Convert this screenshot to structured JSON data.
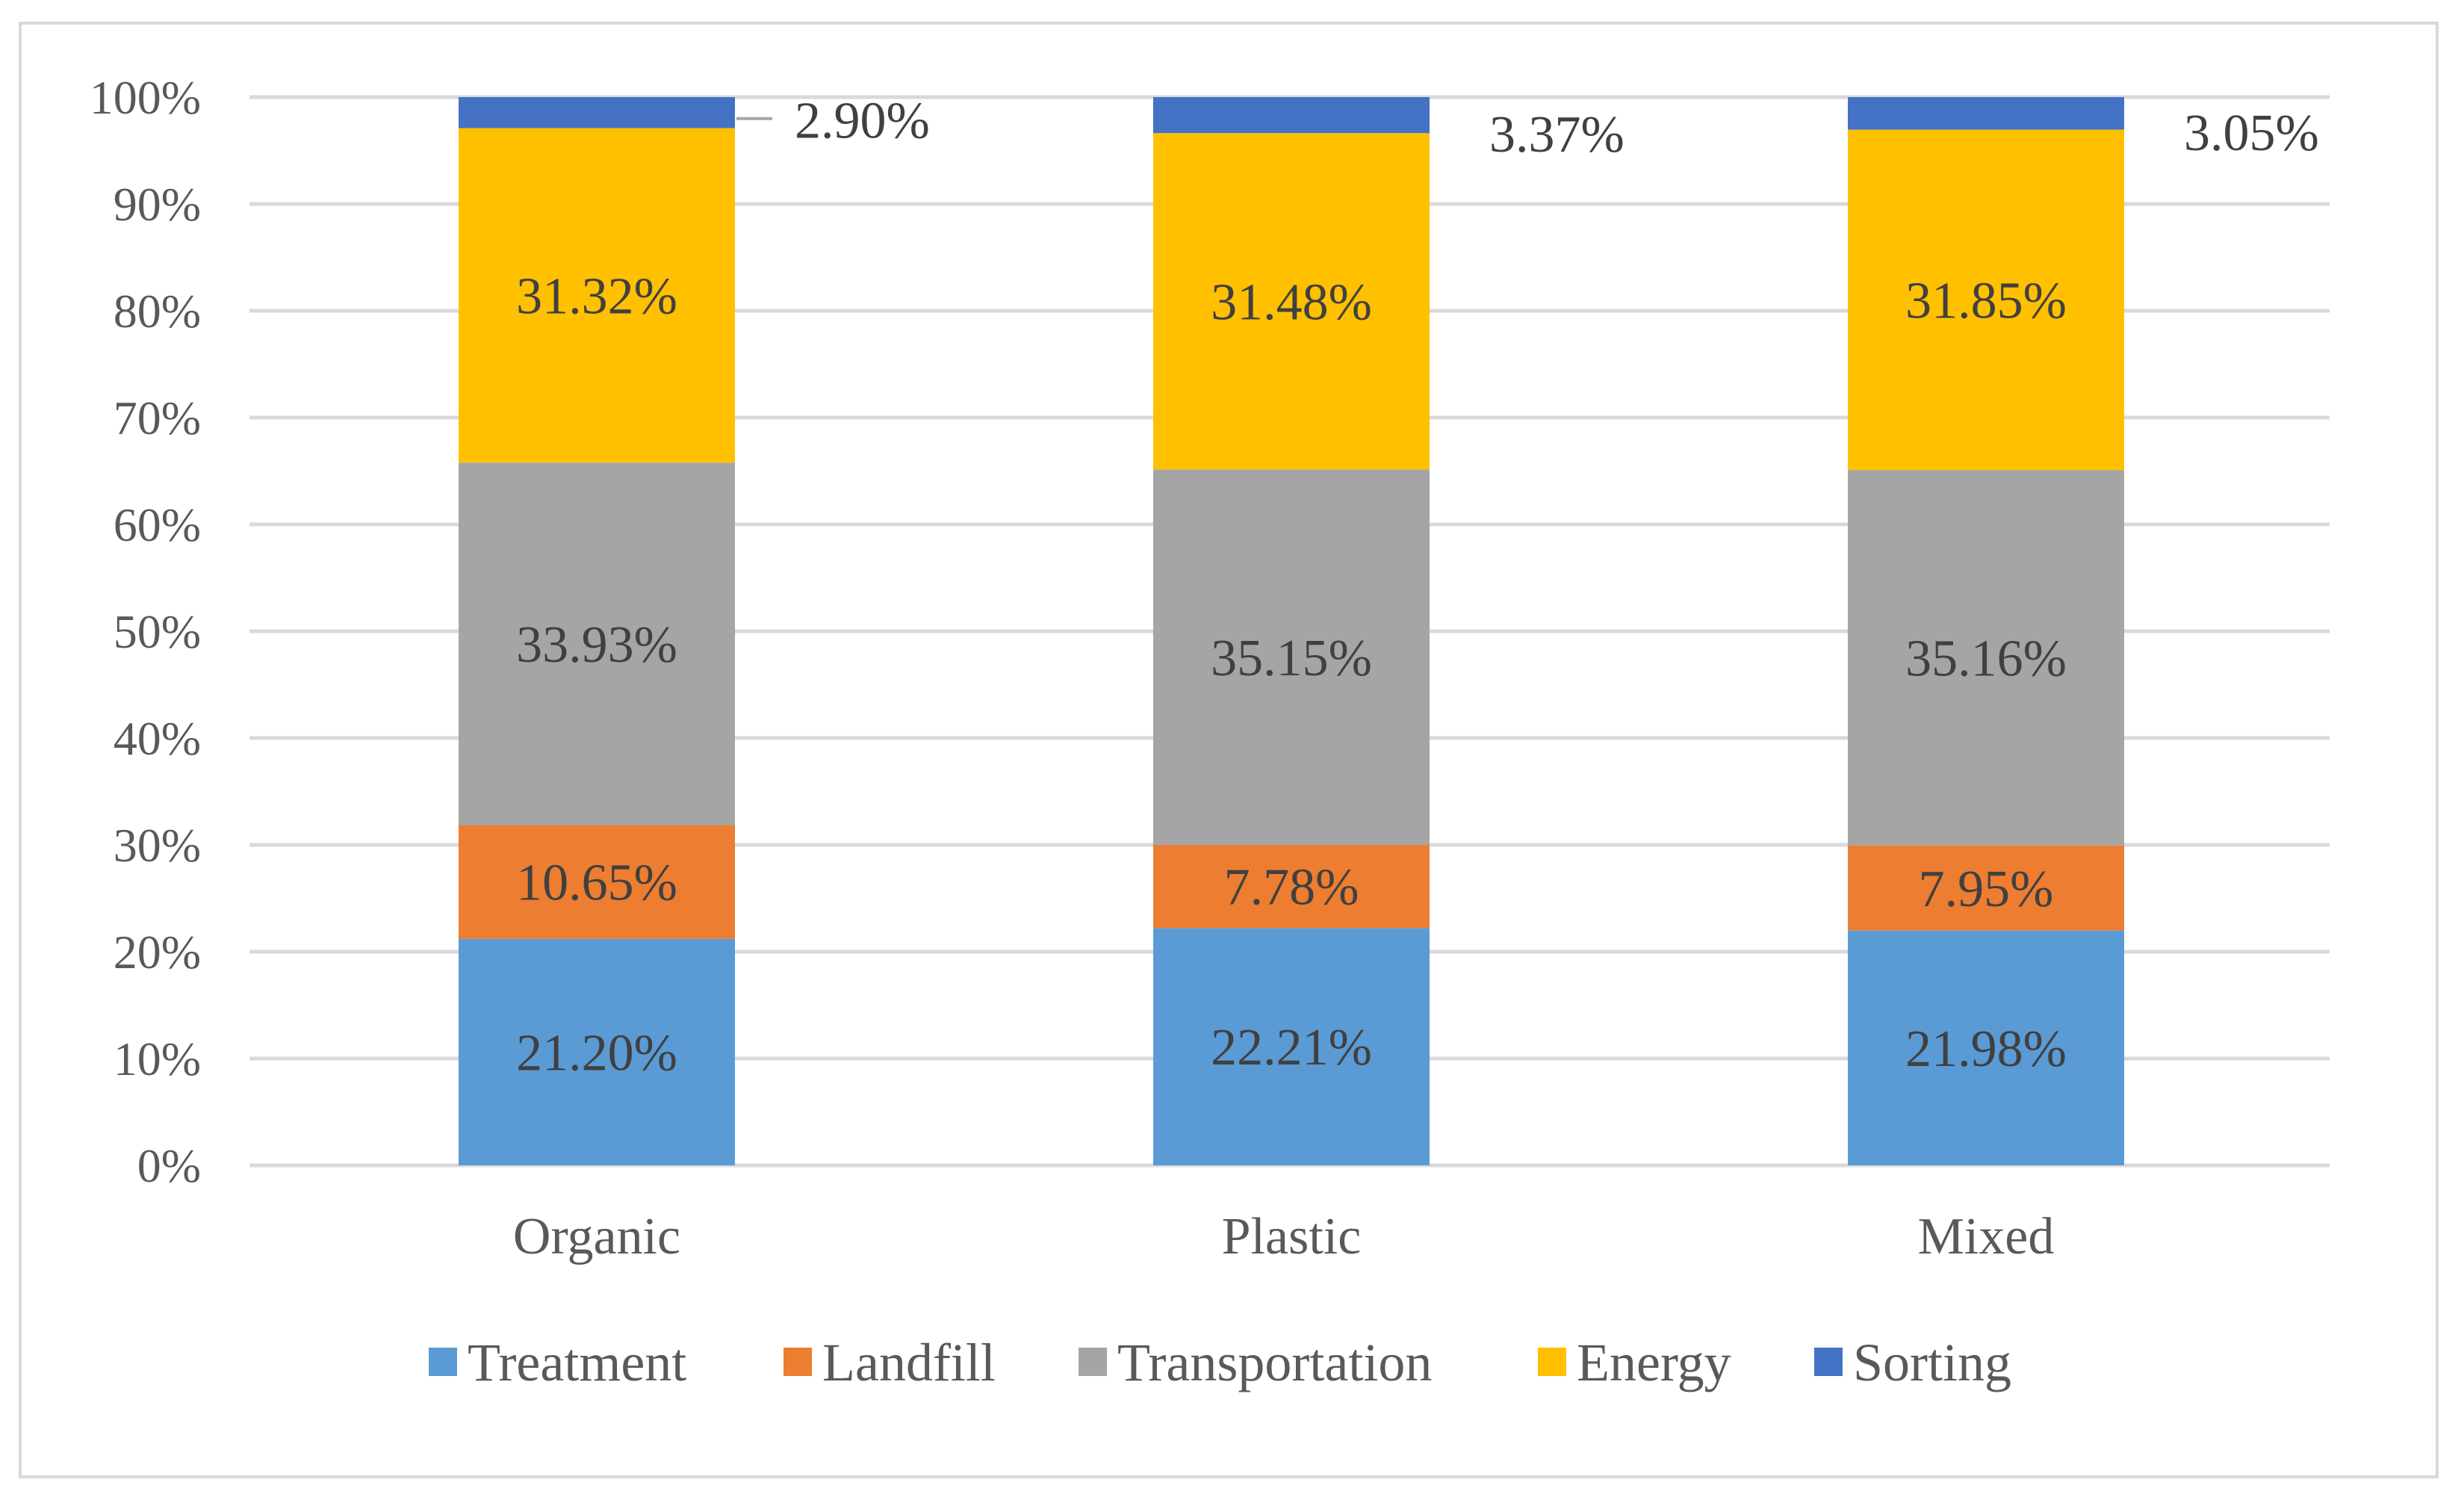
{
  "chart_data": {
    "type": "bar",
    "stacked": true,
    "percent_stacked": true,
    "categories": [
      "Organic",
      "Plastic",
      "Mixed"
    ],
    "series": [
      {
        "name": "Treatment",
        "color": "#5b9bd5",
        "values": [
          21.2,
          22.21,
          21.98
        ],
        "labels": [
          "21.20%",
          "22.21%",
          "21.98%"
        ]
      },
      {
        "name": "Landfill",
        "color": "#ed7d31",
        "values": [
          10.65,
          7.78,
          7.95
        ],
        "labels": [
          "10.65%",
          "7.78%",
          "7.95%"
        ]
      },
      {
        "name": "Transportation",
        "color": "#a5a5a5",
        "values": [
          33.93,
          35.15,
          35.16
        ],
        "labels": [
          "33.93%",
          "35.15%",
          "35.16%"
        ]
      },
      {
        "name": "Energy",
        "color": "#ffc000",
        "values": [
          31.32,
          31.48,
          31.85
        ],
        "labels": [
          "31.32%",
          "31.48%",
          "31.85%"
        ]
      },
      {
        "name": "Sorting",
        "color": "#4472c4",
        "values": [
          2.9,
          3.37,
          3.05
        ],
        "labels": [
          "2.90%",
          "3.37%",
          "3.05%"
        ]
      }
    ],
    "y_ticks": [
      "0%",
      "10%",
      "20%",
      "30%",
      "40%",
      "50%",
      "60%",
      "70%",
      "80%",
      "90%",
      "100%"
    ],
    "ylim": [
      0,
      100
    ],
    "grid": true,
    "legend_position": "bottom",
    "legend_labels": [
      "Treatment",
      "Landfill",
      "Transportation",
      "Energy",
      "Sorting"
    ],
    "gridline_color": "#d9d9d9",
    "text_color": "#595959"
  }
}
